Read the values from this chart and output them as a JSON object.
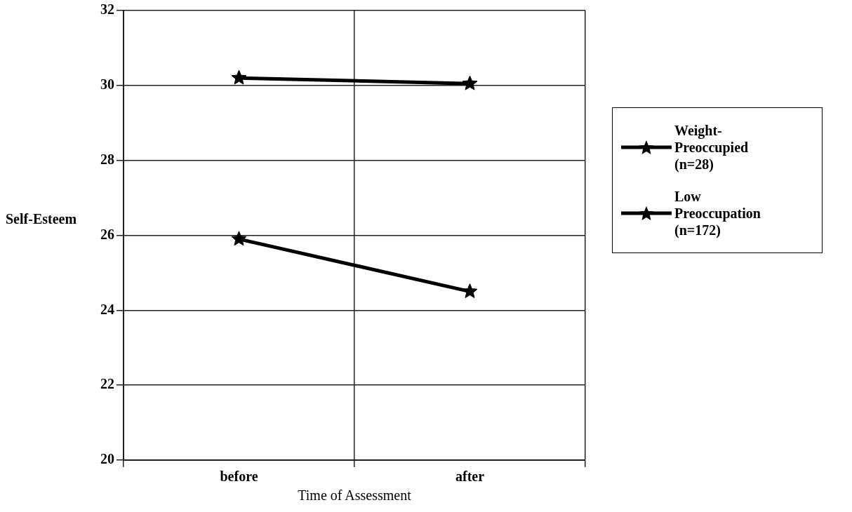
{
  "chart_data": {
    "type": "line",
    "xlabel": "Time of Assessment",
    "ylabel": "Self-Esteem",
    "categories": [
      "before",
      "after"
    ],
    "series": [
      {
        "name": "Weight-Preoccupied (n=28)",
        "color": "#000000",
        "values": [
          25.9,
          24.5
        ]
      },
      {
        "name": "Low Preoccupation (n=172)",
        "color": "#000000",
        "values": [
          30.2,
          30.05
        ]
      }
    ],
    "ylim": [
      20,
      32
    ],
    "yticks": [
      20,
      22,
      24,
      26,
      28,
      30,
      32
    ],
    "grid": true,
    "legend": "right",
    "marker": "star",
    "line_style": "solid"
  }
}
